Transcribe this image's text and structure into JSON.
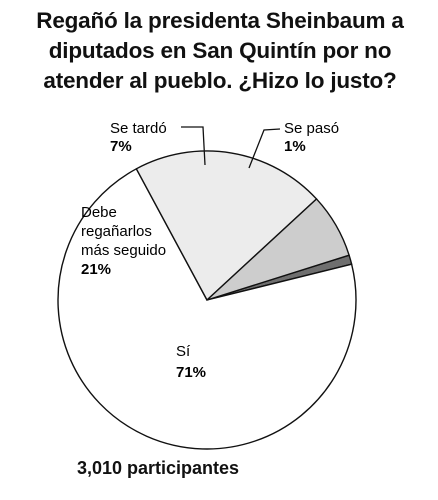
{
  "title": {
    "line1": "Regañó la presidenta Sheinbaum a",
    "line2": "diputados en San Quintín por no",
    "line3": "atender al pueblo. ¿Hizo lo justo?"
  },
  "chart_data": {
    "type": "pie",
    "slices": [
      {
        "label": "Sí",
        "value": 71,
        "value_label": "71%",
        "color": "#ffffff"
      },
      {
        "label": "Debe regañarlos más seguido",
        "label_lines": [
          "Debe",
          "regañarlos",
          "más seguido"
        ],
        "value": 21,
        "value_label": "21%",
        "color": "#ececec"
      },
      {
        "label": "Se tardó",
        "value": 7,
        "value_label": "7%",
        "color": "#cdcdcd"
      },
      {
        "label": "Se pasó",
        "value": 1,
        "value_label": "1%",
        "color": "#6f6f6f"
      }
    ]
  },
  "footer": "3,010 participantes"
}
